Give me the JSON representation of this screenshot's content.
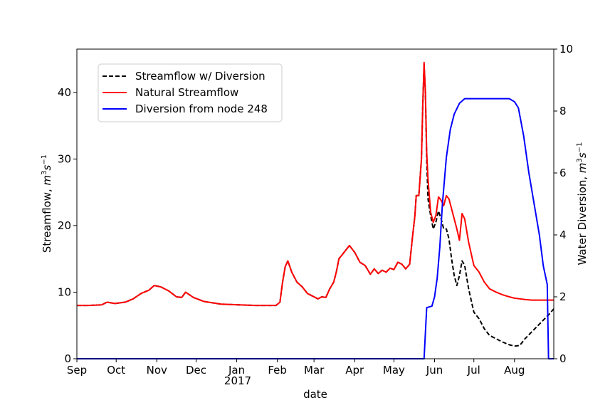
{
  "chart_data": {
    "type": "line",
    "xlabel": "date",
    "ylabel_left": "Streamflow, m^3 s^-1",
    "ylabel_right": "Water Diversion, m^3 s^-1",
    "ylim_left": [
      0,
      46.5
    ],
    "ylim_right": [
      0,
      10
    ],
    "xlim": [
      "2016-09-01",
      "2017-08-31"
    ],
    "x_tick_labels": [
      "Sep",
      "Oct",
      "Nov",
      "Dec",
      "Jan",
      "Feb",
      "Mar",
      "Apr",
      "May",
      "Jun",
      "Jul",
      "Aug"
    ],
    "x_tick_dates": [
      "2016-09-01",
      "2016-10-01",
      "2016-11-01",
      "2016-12-01",
      "2017-01-01",
      "2017-02-01",
      "2017-03-01",
      "2017-04-01",
      "2017-05-01",
      "2017-06-01",
      "2017-07-01",
      "2017-08-01"
    ],
    "year_label": "2017",
    "y_ticks_left": [
      0,
      10,
      20,
      30,
      40
    ],
    "y_ticks_right": [
      0,
      2,
      4,
      6,
      8,
      10
    ],
    "grid": false,
    "legend_position": "top-left",
    "series": [
      {
        "name": "Streamflow w/ Diversion",
        "axis": "left",
        "color": "#000000",
        "dash": "dashed",
        "points": [
          [
            "2016-09-01",
            8.0
          ],
          [
            "2016-09-10",
            8.0
          ],
          [
            "2016-09-20",
            8.1
          ],
          [
            "2016-09-24",
            8.5
          ],
          [
            "2016-09-30",
            8.3
          ],
          [
            "2016-10-08",
            8.5
          ],
          [
            "2016-10-14",
            9.0
          ],
          [
            "2016-10-20",
            9.8
          ],
          [
            "2016-10-26",
            10.3
          ],
          [
            "2016-10-30",
            11.0
          ],
          [
            "2016-11-04",
            10.8
          ],
          [
            "2016-11-10",
            10.2
          ],
          [
            "2016-11-16",
            9.3
          ],
          [
            "2016-11-20",
            9.2
          ],
          [
            "2016-11-23",
            10.0
          ],
          [
            "2016-11-29",
            9.2
          ],
          [
            "2016-12-07",
            8.6
          ],
          [
            "2016-12-20",
            8.2
          ],
          [
            "2017-01-15",
            8.0
          ],
          [
            "2017-01-31",
            8.0
          ],
          [
            "2017-02-03",
            8.5
          ],
          [
            "2017-02-05",
            11.5
          ],
          [
            "2017-02-07",
            13.8
          ],
          [
            "2017-02-09",
            14.7
          ],
          [
            "2017-02-12",
            13.0
          ],
          [
            "2017-02-16",
            11.5
          ],
          [
            "2017-02-20",
            10.8
          ],
          [
            "2017-02-24",
            9.8
          ],
          [
            "2017-02-28",
            9.4
          ],
          [
            "2017-03-04",
            9.0
          ],
          [
            "2017-03-07",
            9.3
          ],
          [
            "2017-03-10",
            9.2
          ],
          [
            "2017-03-13",
            10.5
          ],
          [
            "2017-03-16",
            11.5
          ],
          [
            "2017-03-18",
            13.0
          ],
          [
            "2017-03-20",
            15.0
          ],
          [
            "2017-03-24",
            16.0
          ],
          [
            "2017-03-28",
            17.0
          ],
          [
            "2017-04-01",
            16.0
          ],
          [
            "2017-04-05",
            14.5
          ],
          [
            "2017-04-09",
            14.0
          ],
          [
            "2017-04-13",
            12.7
          ],
          [
            "2017-04-16",
            13.5
          ],
          [
            "2017-04-19",
            12.8
          ],
          [
            "2017-04-22",
            13.3
          ],
          [
            "2017-04-25",
            13.0
          ],
          [
            "2017-04-28",
            13.6
          ],
          [
            "2017-05-01",
            13.4
          ],
          [
            "2017-05-04",
            14.5
          ],
          [
            "2017-05-07",
            14.2
          ],
          [
            "2017-05-10",
            13.5
          ],
          [
            "2017-05-13",
            14.2
          ],
          [
            "2017-05-15",
            18.0
          ],
          [
            "2017-05-17",
            21.5
          ],
          [
            "2017-05-18",
            24.5
          ],
          [
            "2017-05-20",
            24.5
          ],
          [
            "2017-05-22",
            30.0
          ],
          [
            "2017-05-23",
            38.0
          ],
          [
            "2017-05-24",
            44.2
          ],
          [
            "2017-05-25",
            40.0
          ],
          [
            "2017-05-26",
            30.0
          ],
          [
            "2017-05-27",
            24.0
          ],
          [
            "2017-05-29",
            21.5
          ],
          [
            "2017-05-31",
            19.5
          ],
          [
            "2017-06-02",
            20.5
          ],
          [
            "2017-06-04",
            22.2
          ],
          [
            "2017-06-06",
            21.0
          ],
          [
            "2017-06-08",
            19.5
          ],
          [
            "2017-06-10",
            19.5
          ],
          [
            "2017-06-12",
            18.0
          ],
          [
            "2017-06-14",
            15.0
          ],
          [
            "2017-06-16",
            12.5
          ],
          [
            "2017-06-18",
            11.0
          ],
          [
            "2017-06-20",
            12.5
          ],
          [
            "2017-06-22",
            14.7
          ],
          [
            "2017-06-24",
            14.0
          ],
          [
            "2017-06-27",
            10.5
          ],
          [
            "2017-07-01",
            7.0
          ],
          [
            "2017-07-05",
            6.0
          ],
          [
            "2017-07-09",
            4.5
          ],
          [
            "2017-07-13",
            3.5
          ],
          [
            "2017-07-18",
            3.0
          ],
          [
            "2017-07-23",
            2.5
          ],
          [
            "2017-07-28",
            2.1
          ],
          [
            "2017-08-01",
            1.9
          ],
          [
            "2017-08-05",
            2.0
          ],
          [
            "2017-08-09",
            3.0
          ],
          [
            "2017-08-14",
            4.0
          ],
          [
            "2017-08-19",
            5.0
          ],
          [
            "2017-08-24",
            6.0
          ],
          [
            "2017-08-28",
            6.8
          ],
          [
            "2017-08-31",
            7.5
          ]
        ]
      },
      {
        "name": "Natural Streamflow",
        "axis": "left",
        "color": "#ff0000",
        "dash": "solid",
        "points": [
          [
            "2016-09-01",
            8.0
          ],
          [
            "2016-09-10",
            8.0
          ],
          [
            "2016-09-20",
            8.1
          ],
          [
            "2016-09-24",
            8.5
          ],
          [
            "2016-09-30",
            8.3
          ],
          [
            "2016-10-08",
            8.5
          ],
          [
            "2016-10-14",
            9.0
          ],
          [
            "2016-10-20",
            9.8
          ],
          [
            "2016-10-26",
            10.3
          ],
          [
            "2016-10-30",
            11.0
          ],
          [
            "2016-11-04",
            10.8
          ],
          [
            "2016-11-10",
            10.2
          ],
          [
            "2016-11-16",
            9.3
          ],
          [
            "2016-11-20",
            9.2
          ],
          [
            "2016-11-23",
            10.0
          ],
          [
            "2016-11-29",
            9.2
          ],
          [
            "2016-12-07",
            8.6
          ],
          [
            "2016-12-20",
            8.2
          ],
          [
            "2017-01-15",
            8.0
          ],
          [
            "2017-01-31",
            8.0
          ],
          [
            "2017-02-03",
            8.5
          ],
          [
            "2017-02-05",
            11.5
          ],
          [
            "2017-02-07",
            13.8
          ],
          [
            "2017-02-09",
            14.7
          ],
          [
            "2017-02-12",
            13.0
          ],
          [
            "2017-02-16",
            11.5
          ],
          [
            "2017-02-20",
            10.8
          ],
          [
            "2017-02-24",
            9.8
          ],
          [
            "2017-02-28",
            9.4
          ],
          [
            "2017-03-04",
            9.0
          ],
          [
            "2017-03-07",
            9.3
          ],
          [
            "2017-03-10",
            9.2
          ],
          [
            "2017-03-13",
            10.5
          ],
          [
            "2017-03-16",
            11.5
          ],
          [
            "2017-03-18",
            13.0
          ],
          [
            "2017-03-20",
            15.0
          ],
          [
            "2017-03-24",
            16.0
          ],
          [
            "2017-03-28",
            17.0
          ],
          [
            "2017-04-01",
            16.0
          ],
          [
            "2017-04-05",
            14.5
          ],
          [
            "2017-04-09",
            14.0
          ],
          [
            "2017-04-13",
            12.7
          ],
          [
            "2017-04-16",
            13.5
          ],
          [
            "2017-04-19",
            12.8
          ],
          [
            "2017-04-22",
            13.3
          ],
          [
            "2017-04-25",
            13.0
          ],
          [
            "2017-04-28",
            13.6
          ],
          [
            "2017-05-01",
            13.4
          ],
          [
            "2017-05-04",
            14.5
          ],
          [
            "2017-05-07",
            14.2
          ],
          [
            "2017-05-10",
            13.5
          ],
          [
            "2017-05-13",
            14.2
          ],
          [
            "2017-05-15",
            18.0
          ],
          [
            "2017-05-17",
            21.5
          ],
          [
            "2017-05-18",
            24.5
          ],
          [
            "2017-05-20",
            24.5
          ],
          [
            "2017-05-22",
            30.0
          ],
          [
            "2017-05-23",
            38.0
          ],
          [
            "2017-05-24",
            44.5
          ],
          [
            "2017-05-25",
            40.0
          ],
          [
            "2017-05-26",
            31.0
          ],
          [
            "2017-05-27",
            27.0
          ],
          [
            "2017-05-29",
            22.0
          ],
          [
            "2017-05-31",
            20.5
          ],
          [
            "2017-06-02",
            21.5
          ],
          [
            "2017-06-04",
            24.3
          ],
          [
            "2017-06-06",
            23.8
          ],
          [
            "2017-06-08",
            23.0
          ],
          [
            "2017-06-10",
            24.5
          ],
          [
            "2017-06-12",
            24.0
          ],
          [
            "2017-06-14",
            22.5
          ],
          [
            "2017-06-16",
            21.0
          ],
          [
            "2017-06-18",
            19.5
          ],
          [
            "2017-06-20",
            17.8
          ],
          [
            "2017-06-22",
            21.8
          ],
          [
            "2017-06-24",
            21.0
          ],
          [
            "2017-06-27",
            17.5
          ],
          [
            "2017-07-01",
            14.0
          ],
          [
            "2017-07-05",
            13.0
          ],
          [
            "2017-07-09",
            11.5
          ],
          [
            "2017-07-13",
            10.5
          ],
          [
            "2017-07-18",
            10.0
          ],
          [
            "2017-07-23",
            9.6
          ],
          [
            "2017-07-28",
            9.3
          ],
          [
            "2017-08-01",
            9.1
          ],
          [
            "2017-08-05",
            9.0
          ],
          [
            "2017-08-09",
            8.9
          ],
          [
            "2017-08-14",
            8.8
          ],
          [
            "2017-08-19",
            8.8
          ],
          [
            "2017-08-24",
            8.8
          ],
          [
            "2017-08-28",
            8.8
          ],
          [
            "2017-08-31",
            8.8
          ]
        ]
      },
      {
        "name": "Diversion from node 248",
        "axis": "right",
        "color": "#0000ff",
        "dash": "solid",
        "points": [
          [
            "2016-09-01",
            0.0
          ],
          [
            "2017-05-24",
            0.0
          ],
          [
            "2017-05-26",
            1.65
          ],
          [
            "2017-05-30",
            1.7
          ],
          [
            "2017-06-01",
            2.0
          ],
          [
            "2017-06-03",
            2.6
          ],
          [
            "2017-06-05",
            3.6
          ],
          [
            "2017-06-07",
            5.0
          ],
          [
            "2017-06-10",
            6.5
          ],
          [
            "2017-06-13",
            7.4
          ],
          [
            "2017-06-16",
            7.9
          ],
          [
            "2017-06-20",
            8.25
          ],
          [
            "2017-06-24",
            8.4
          ],
          [
            "2017-07-01",
            8.4
          ],
          [
            "2017-07-15",
            8.4
          ],
          [
            "2017-07-28",
            8.4
          ],
          [
            "2017-08-01",
            8.3
          ],
          [
            "2017-08-04",
            8.1
          ],
          [
            "2017-08-08",
            7.2
          ],
          [
            "2017-08-12",
            6.0
          ],
          [
            "2017-08-16",
            5.0
          ],
          [
            "2017-08-20",
            4.0
          ],
          [
            "2017-08-23",
            3.0
          ],
          [
            "2017-08-26",
            2.4
          ],
          [
            "2017-08-27",
            0.0
          ],
          [
            "2017-08-31",
            0.0
          ]
        ]
      }
    ]
  }
}
